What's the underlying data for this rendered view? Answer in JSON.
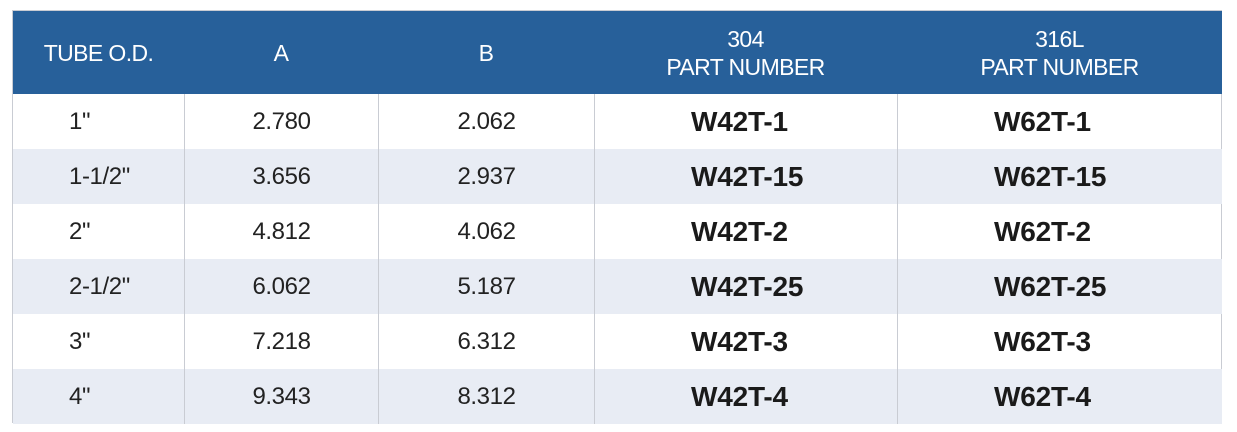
{
  "table": {
    "header": [
      [
        "TUBE O.D."
      ],
      [
        "A"
      ],
      [
        "B"
      ],
      [
        "304",
        "PART NUMBER"
      ],
      [
        "316L",
        "PART NUMBER"
      ]
    ],
    "rows": [
      [
        "1\"",
        "2.780",
        "2.062",
        "W42T-1",
        "W62T-1"
      ],
      [
        "1-1/2\"",
        "3.656",
        "2.937",
        "W42T-15",
        "W62T-15"
      ],
      [
        "2\"",
        "4.812",
        "4.062",
        "W42T-2",
        "W62T-2"
      ],
      [
        "2-1/2\"",
        "6.062",
        "5.187",
        "W42T-25",
        "W62T-25"
      ],
      [
        "3\"",
        "7.218",
        "6.312",
        "W42T-3",
        "W62T-3"
      ],
      [
        "4\"",
        "9.343",
        "8.312",
        "W42T-4",
        "W62T-4"
      ]
    ]
  }
}
